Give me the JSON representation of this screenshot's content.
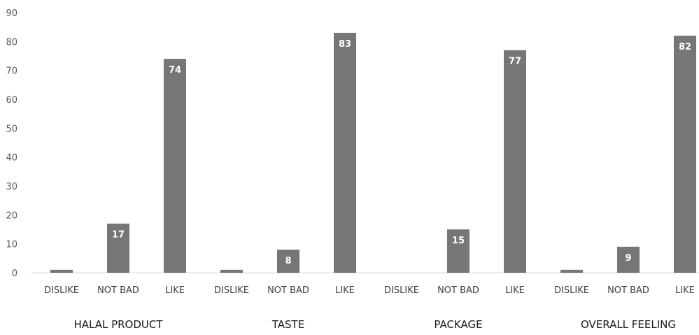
{
  "chart_data": {
    "type": "bar",
    "title": "",
    "xlabel": "",
    "ylabel": "",
    "ylim": [
      0,
      90
    ],
    "yticks": [
      0,
      10,
      20,
      30,
      40,
      50,
      60,
      70,
      80,
      90
    ],
    "grid": false,
    "legend": "none",
    "bar_color": "#767676",
    "groups": [
      {
        "label": "HALAL PRODUCT",
        "bars": [
          {
            "category": "DISLIKE",
            "value": 1,
            "label": ""
          },
          {
            "category": "NOT BAD",
            "value": 17,
            "label": "17"
          },
          {
            "category": "LIKE",
            "value": 74,
            "label": "74"
          }
        ]
      },
      {
        "label": "TASTE",
        "bars": [
          {
            "category": "DISLIKE",
            "value": 1,
            "label": ""
          },
          {
            "category": "NOT BAD",
            "value": 8,
            "label": "8"
          },
          {
            "category": "LIKE",
            "value": 83,
            "label": "83"
          }
        ]
      },
      {
        "label": "PACKAGE",
        "bars": [
          {
            "category": "DISLIKE",
            "value": 0,
            "label": ""
          },
          {
            "category": "NOT BAD",
            "value": 15,
            "label": "15"
          },
          {
            "category": "LIKE",
            "value": 77,
            "label": "77"
          }
        ]
      },
      {
        "label": "OVERALL FEELING",
        "bars": [
          {
            "category": "DISLIKE",
            "value": 1,
            "label": ""
          },
          {
            "category": "NOT BAD",
            "value": 9,
            "label": "9"
          },
          {
            "category": "LIKE",
            "value": 82,
            "label": "82"
          }
        ]
      }
    ]
  }
}
